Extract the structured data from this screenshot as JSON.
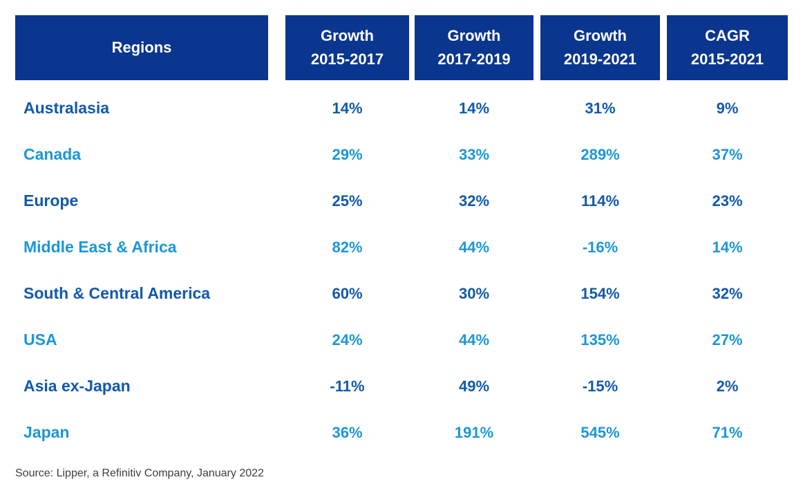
{
  "chart_data": {
    "type": "table",
    "columns": [
      "Regions",
      "Growth 2015-2017",
      "Growth 2017-2019",
      "Growth 2019-2021",
      "CAGR 2015-2021"
    ],
    "rows": [
      [
        "Australasia",
        "14%",
        "14%",
        "31%",
        "9%"
      ],
      [
        "Canada",
        "29%",
        "33%",
        "289%",
        "37%"
      ],
      [
        "Europe",
        "25%",
        "32%",
        "114%",
        "23%"
      ],
      [
        "Middle East & Africa",
        "82%",
        "44%",
        "-16%",
        "14%"
      ],
      [
        "South & Central America",
        "60%",
        "30%",
        "154%",
        "32%"
      ],
      [
        "USA",
        "24%",
        "44%",
        "135%",
        "27%"
      ],
      [
        "Asia ex-Japan",
        "-11%",
        "49%",
        "-15%",
        "2%"
      ],
      [
        "Japan",
        "36%",
        "191%",
        "545%",
        "71%"
      ]
    ],
    "title": "",
    "legend": "row text alternates dark blue and cyan",
    "source": "Source: Lipper, a Refinitiv Company, January 2022"
  },
  "header": {
    "regions": "Regions",
    "cols": [
      {
        "line1": "Growth",
        "line2": "2015-2017"
      },
      {
        "line1": "Growth",
        "line2": "2017-2019"
      },
      {
        "line1": "Growth",
        "line2": "2019-2021"
      },
      {
        "line1": "CAGR",
        "line2": "2015-2021"
      }
    ]
  },
  "source": "Source: Lipper, a Refinitiv Company, January 2022",
  "colors": {
    "header_bg": "#0b368f",
    "header_text": "#ffffff",
    "row_dark": "#1158ad",
    "row_cyan": "#1b97d6",
    "source_text": "#3d3d3d"
  }
}
